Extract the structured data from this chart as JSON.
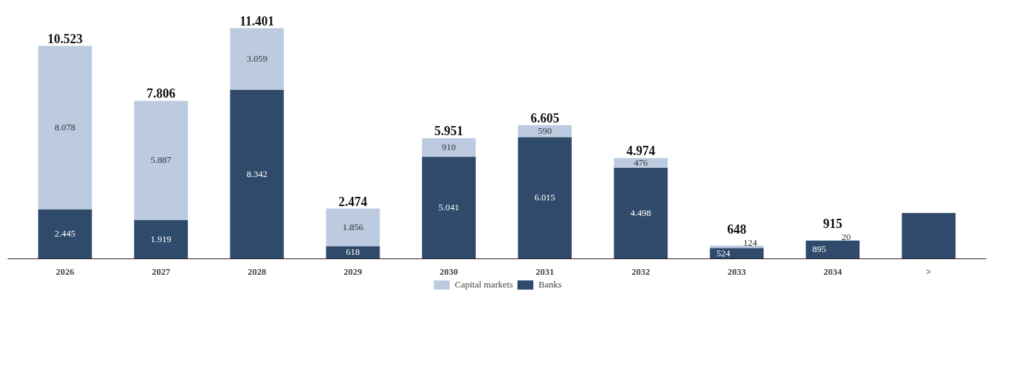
{
  "chart_data": {
    "type": "bar",
    "stacked": true,
    "categories": [
      "2026",
      "2027",
      "2028",
      "2029",
      "2030",
      "2031",
      "2032",
      "2033",
      "2034",
      ">"
    ],
    "series": [
      {
        "name": "Banks",
        "color": "#2f4a6b",
        "values": [
          2445,
          1919,
          8342,
          618,
          5041,
          6015,
          4498,
          524,
          895,
          2260
        ],
        "value_labels": [
          "2.445",
          "1.919",
          "8.342",
          "618",
          "5.041",
          "6.015",
          "4.498",
          "524",
          "895",
          null
        ]
      },
      {
        "name": "Capital markets",
        "color": "#bccbdf",
        "values": [
          8078,
          5887,
          3059,
          1856,
          910,
          590,
          476,
          124,
          20,
          null
        ],
        "value_labels": [
          "8.078",
          "5.887",
          "3.059",
          "1.856",
          "910",
          "590",
          "476",
          "124",
          "20",
          null
        ]
      }
    ],
    "totals": [
      "10.523",
      "7.806",
      "11.401",
      "2.474",
      "5.951",
      "6.605",
      "4.974",
      "648",
      "915",
      null
    ],
    "legend": "bottom"
  }
}
